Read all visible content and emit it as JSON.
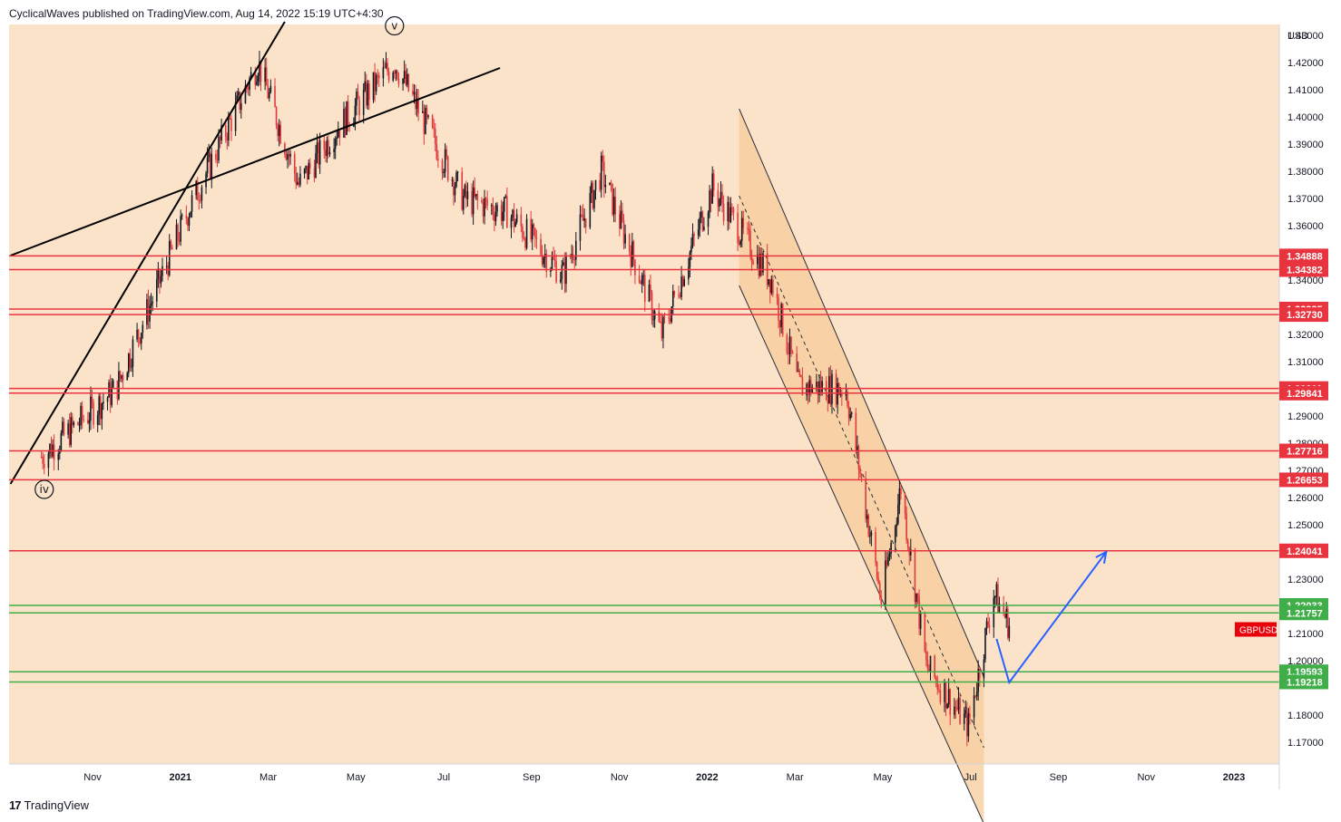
{
  "header": {
    "attribution": "CyclicalWaves published on TradingView.com, Aug 14, 2022 15:19 UTC+4:30"
  },
  "footer": {
    "brand": "TradingView",
    "logo": "17"
  },
  "colors": {
    "background": "#fbe3c9",
    "up_candle": "#131722",
    "down_candle": "#e03a3e",
    "resistance": "#e8343f",
    "support": "#3fae49",
    "projection": "#2962ff",
    "channel_fill": "#f7cc9a"
  },
  "chart_data": {
    "type": "candlestick",
    "symbol": "GBPUSD",
    "currency": "USD",
    "ylim": [
      1.162,
      1.434
    ],
    "y_ticks": [
      1.17,
      1.18,
      1.2,
      1.21,
      1.23,
      1.25,
      1.26,
      1.27,
      1.28,
      1.29,
      1.31,
      1.32,
      1.34,
      1.36,
      1.37,
      1.38,
      1.39,
      1.4,
      1.41,
      1.42,
      1.43
    ],
    "x_ticks": [
      {
        "label": "Nov",
        "bold": false
      },
      {
        "label": "2021",
        "bold": true
      },
      {
        "label": "Mar",
        "bold": false
      },
      {
        "label": "May",
        "bold": false
      },
      {
        "label": "Jul",
        "bold": false
      },
      {
        "label": "Sep",
        "bold": false
      },
      {
        "label": "Nov",
        "bold": false
      },
      {
        "label": "2022",
        "bold": true
      },
      {
        "label": "Mar",
        "bold": false
      },
      {
        "label": "May",
        "bold": false
      },
      {
        "label": "Jul",
        "bold": false
      },
      {
        "label": "Sep",
        "bold": false
      },
      {
        "label": "Nov",
        "bold": false
      },
      {
        "label": "2023",
        "bold": true
      }
    ],
    "levels": [
      {
        "value": 1.34888,
        "label": "1.34888",
        "kind": "resistance"
      },
      {
        "value": 1.34382,
        "label": "1.34382",
        "kind": "resistance"
      },
      {
        "value": 1.32935,
        "label": "1.32935",
        "kind": "resistance"
      },
      {
        "value": 1.3273,
        "label": "1.32730",
        "kind": "resistance"
      },
      {
        "value": 1.30011,
        "label": "1.30011",
        "kind": "resistance"
      },
      {
        "value": 1.29841,
        "label": "1.29841",
        "kind": "resistance"
      },
      {
        "value": 1.27716,
        "label": "1.27716",
        "kind": "resistance"
      },
      {
        "value": 1.26653,
        "label": "1.26653",
        "kind": "resistance"
      },
      {
        "value": 1.24041,
        "label": "1.24041",
        "kind": "resistance"
      },
      {
        "value": 1.22033,
        "label": "1.22033",
        "kind": "support"
      },
      {
        "value": 1.21757,
        "label": "1.21757",
        "kind": "support"
      },
      {
        "value": 1.19593,
        "label": "1.19593",
        "kind": "support"
      },
      {
        "value": 1.19218,
        "label": "1.19218",
        "kind": "support"
      }
    ],
    "symbol_label": "GBPUSD",
    "price_anchors": [
      {
        "date": "2020-09-23",
        "price": 1.275
      },
      {
        "date": "2020-11-15",
        "price": 1.3
      },
      {
        "date": "2021-01-05",
        "price": 1.365
      },
      {
        "date": "2021-02-24",
        "price": 1.42
      },
      {
        "date": "2021-03-25",
        "price": 1.375
      },
      {
        "date": "2021-04-20",
        "price": 1.395
      },
      {
        "date": "2021-06-01",
        "price": 1.42
      },
      {
        "date": "2021-07-20",
        "price": 1.37
      },
      {
        "date": "2021-08-20",
        "price": 1.365
      },
      {
        "date": "2021-09-29",
        "price": 1.342
      },
      {
        "date": "2021-10-26",
        "price": 1.38
      },
      {
        "date": "2021-12-08",
        "price": 1.32
      },
      {
        "date": "2022-01-13",
        "price": 1.374
      },
      {
        "date": "2022-02-24",
        "price": 1.34
      },
      {
        "date": "2022-03-15",
        "price": 1.301
      },
      {
        "date": "2022-04-18",
        "price": 1.3
      },
      {
        "date": "2022-05-13",
        "price": 1.222
      },
      {
        "date": "2022-05-27",
        "price": 1.264
      },
      {
        "date": "2022-06-14",
        "price": 1.198
      },
      {
        "date": "2022-07-14",
        "price": 1.176
      },
      {
        "date": "2022-08-01",
        "price": 1.225
      },
      {
        "date": "2022-08-12",
        "price": 1.213
      }
    ],
    "wave_labels": [
      {
        "text": "iv",
        "date": "2020-09-25",
        "price": 1.263
      },
      {
        "text": "v",
        "date": "2021-06-01",
        "price": 1.4335
      }
    ],
    "trend_channels": [
      {
        "style": "solid",
        "from": {
          "date": "2020-09-01",
          "price": 1.265
        },
        "to": {
          "date": "2021-03-15",
          "price": 1.435
        }
      },
      {
        "style": "solid",
        "from": {
          "date": "2020-09-01",
          "price": 1.349
        },
        "to": {
          "date": "2021-08-15",
          "price": 1.418
        }
      }
    ],
    "regression_channel": {
      "upper": {
        "from": {
          "date": "2022-02-01",
          "price": 1.403
        },
        "to": {
          "date": "2022-07-25",
          "price": 1.194
        }
      },
      "middle": {
        "from": {
          "date": "2022-02-01",
          "price": 1.371
        },
        "to": {
          "date": "2022-07-25",
          "price": 1.168
        }
      },
      "lower": {
        "from": {
          "date": "2022-02-01",
          "price": 1.338
        },
        "to": {
          "date": "2022-07-25",
          "price": 1.14
        }
      }
    },
    "projection": [
      {
        "date": "2022-08-03",
        "price": 1.208
      },
      {
        "date": "2022-08-12",
        "price": 1.192
      },
      {
        "date": "2022-10-20",
        "price": 1.24
      }
    ]
  }
}
